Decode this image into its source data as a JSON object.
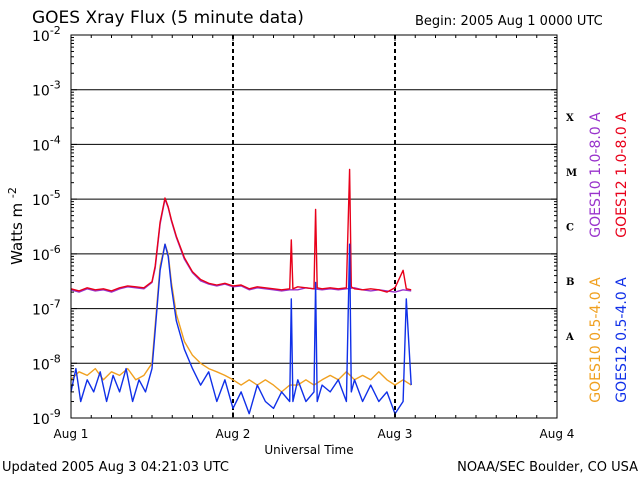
{
  "header": {
    "title": "GOES Xray Flux (5 minute data)",
    "begin": "Begin:  2005 Aug 1 0000 UTC"
  },
  "footer": {
    "updated": "Updated 2005 Aug  3 04:21:03 UTC",
    "credit": "NOAA/SEC Boulder, CO USA"
  },
  "colors": {
    "goes10_long": "#9933cc",
    "goes12_long": "#e8001a",
    "goes10_short": "#f0a020",
    "goes12_short": "#1030e8"
  },
  "chart_data": {
    "type": "line",
    "title": "GOES Xray Flux (5 minute data)",
    "xlabel": "Universal Time",
    "ylabel": "Watts m",
    "ylabel_sup": "-2",
    "x_unit": "days since 2005 Aug 1 0000 UTC",
    "xlim": [
      0,
      3
    ],
    "ylim": [
      1e-09,
      0.01
    ],
    "yscale": "log",
    "grid": true,
    "x_ticks": [
      {
        "x": 0,
        "label": "Aug 1"
      },
      {
        "x": 1,
        "label": "Aug 2"
      },
      {
        "x": 2,
        "label": "Aug 3"
      },
      {
        "x": 3,
        "label": "Aug 4"
      }
    ],
    "y_ticks": [
      {
        "exp": -2,
        "base": "10",
        "sup": "-2"
      },
      {
        "exp": -3,
        "base": "10",
        "sup": "-3"
      },
      {
        "exp": -4,
        "base": "10",
        "sup": "-4"
      },
      {
        "exp": -5,
        "base": "10",
        "sup": "-5"
      },
      {
        "exp": -6,
        "base": "10",
        "sup": "-6"
      },
      {
        "exp": -7,
        "base": "10",
        "sup": "-7"
      },
      {
        "exp": -8,
        "base": "10",
        "sup": "-8"
      },
      {
        "exp": -9,
        "base": "10",
        "sup": "-9"
      }
    ],
    "flare_classes": [
      {
        "label": "X",
        "exp": -3.5
      },
      {
        "label": "M",
        "exp": -4.5
      },
      {
        "label": "C",
        "exp": -5.5
      },
      {
        "label": "B",
        "exp": -6.5
      },
      {
        "label": "A",
        "exp": -7.5
      }
    ],
    "legend_right": [
      {
        "name": "GOES10 1.0-8.0 A",
        "color": "#9933cc",
        "part": "top"
      },
      {
        "name": "GOES12 1.0-8.0 A",
        "color": "#e8001a",
        "part": "top"
      },
      {
        "name": "GOES10 0.5-4.0 A",
        "color": "#f0a020",
        "part": "bottom"
      },
      {
        "name": "GOES12 0.5-4.0 A",
        "color": "#1030e8",
        "part": "bottom"
      }
    ],
    "series": [
      {
        "name": "GOES10 1.0-8.0 A",
        "color": "#9933cc",
        "x": [
          0,
          0.05,
          0.1,
          0.15,
          0.2,
          0.25,
          0.3,
          0.35,
          0.4,
          0.45,
          0.5,
          0.52,
          0.55,
          0.58,
          0.6,
          0.62,
          0.65,
          0.7,
          0.75,
          0.8,
          0.85,
          0.9,
          0.95,
          1.0,
          1.05,
          1.1,
          1.15,
          1.2,
          1.25,
          1.3,
          1.35,
          1.4,
          1.45,
          1.5,
          1.55,
          1.6,
          1.65,
          1.7,
          1.75,
          1.8,
          1.85,
          1.9,
          1.95,
          2.0,
          2.05,
          2.1
        ],
        "y": [
          2.2e-07,
          2e-07,
          2.3e-07,
          2.1e-07,
          2.2e-07,
          2e-07,
          2.3e-07,
          2.5e-07,
          2.4e-07,
          2.3e-07,
          3e-07,
          5.5e-07,
          3.5e-06,
          1e-05,
          7e-06,
          4e-06,
          2e-06,
          8e-07,
          4.5e-07,
          3.2e-07,
          2.8e-07,
          2.6e-07,
          2.8e-07,
          2.5e-07,
          2.6e-07,
          2.2e-07,
          2.4e-07,
          2.3e-07,
          2.2e-07,
          2.1e-07,
          2.2e-07,
          2.2e-07,
          2.4e-07,
          2.3e-07,
          2.2e-07,
          2.3e-07,
          2.2e-07,
          2.3e-07,
          2.4e-07,
          2.2e-07,
          2.1e-07,
          2.2e-07,
          2.1e-07,
          2e-07,
          2.2e-07,
          2.1e-07
        ]
      },
      {
        "name": "GOES12 1.0-8.0 A",
        "color": "#e8001a",
        "x": [
          0,
          0.05,
          0.1,
          0.15,
          0.2,
          0.25,
          0.3,
          0.35,
          0.4,
          0.45,
          0.5,
          0.52,
          0.55,
          0.58,
          0.6,
          0.62,
          0.65,
          0.7,
          0.75,
          0.8,
          0.85,
          0.9,
          0.95,
          1.0,
          1.05,
          1.1,
          1.15,
          1.2,
          1.25,
          1.3,
          1.35,
          1.36,
          1.37,
          1.4,
          1.45,
          1.5,
          1.51,
          1.52,
          1.55,
          1.6,
          1.65,
          1.7,
          1.72,
          1.73,
          1.75,
          1.8,
          1.85,
          1.9,
          1.95,
          2.0,
          2.05,
          2.07,
          2.1
        ],
        "y": [
          2.3e-07,
          2.1e-07,
          2.4e-07,
          2.2e-07,
          2.3e-07,
          2.1e-07,
          2.4e-07,
          2.6e-07,
          2.5e-07,
          2.4e-07,
          3.1e-07,
          6e-07,
          3.8e-06,
          1.05e-05,
          7.2e-06,
          4.2e-06,
          2.1e-06,
          8.5e-07,
          4.7e-07,
          3.4e-07,
          2.9e-07,
          2.7e-07,
          2.9e-07,
          2.6e-07,
          2.7e-07,
          2.3e-07,
          2.5e-07,
          2.4e-07,
          2.3e-07,
          2.2e-07,
          2.3e-07,
          1.8e-06,
          2.3e-07,
          2.5e-07,
          2.4e-07,
          2.3e-07,
          6.5e-06,
          2.4e-07,
          2.3e-07,
          2.4e-07,
          2.3e-07,
          2.4e-07,
          3.5e-05,
          2.5e-07,
          2.3e-07,
          2.2e-07,
          2.3e-07,
          2.2e-07,
          2e-07,
          2.4e-07,
          5e-07,
          2.3e-07,
          2.2e-07
        ]
      },
      {
        "name": "GOES10 0.5-4.0 A",
        "color": "#f0a020",
        "x": [
          0,
          0.05,
          0.1,
          0.15,
          0.2,
          0.25,
          0.3,
          0.35,
          0.4,
          0.45,
          0.5,
          0.52,
          0.55,
          0.58,
          0.6,
          0.62,
          0.65,
          0.7,
          0.75,
          0.8,
          0.85,
          0.9,
          0.95,
          1.0,
          1.05,
          1.1,
          1.15,
          1.2,
          1.25,
          1.3,
          1.35,
          1.4,
          1.45,
          1.5,
          1.55,
          1.6,
          1.65,
          1.7,
          1.75,
          1.8,
          1.85,
          1.9,
          1.95,
          2.0,
          2.05,
          2.1
        ],
        "y": [
          5e-09,
          7e-09,
          6e-09,
          8e-09,
          5e-09,
          7e-09,
          6e-09,
          8e-09,
          5e-09,
          6e-09,
          1e-08,
          5e-08,
          6e-07,
          1.5e-06,
          1e-06,
          3e-07,
          8e-08,
          2.5e-08,
          1.4e-08,
          1e-08,
          8e-09,
          7e-09,
          6e-09,
          5e-09,
          4e-09,
          5e-09,
          4e-09,
          5e-09,
          4e-09,
          3e-09,
          4e-09,
          4e-09,
          5e-09,
          4e-09,
          5e-09,
          6e-09,
          5e-09,
          7e-09,
          5e-09,
          6e-09,
          5e-09,
          7e-09,
          5e-09,
          4e-09,
          5e-09,
          4e-09
        ]
      },
      {
        "name": "GOES12 0.5-4.0 A",
        "color": "#1030e8",
        "x": [
          0,
          0.03,
          0.06,
          0.1,
          0.14,
          0.18,
          0.22,
          0.26,
          0.3,
          0.34,
          0.38,
          0.42,
          0.46,
          0.5,
          0.52,
          0.55,
          0.58,
          0.6,
          0.62,
          0.65,
          0.7,
          0.75,
          0.8,
          0.85,
          0.9,
          0.95,
          1.0,
          1.05,
          1.1,
          1.15,
          1.2,
          1.25,
          1.3,
          1.35,
          1.36,
          1.37,
          1.4,
          1.45,
          1.5,
          1.51,
          1.52,
          1.55,
          1.6,
          1.65,
          1.7,
          1.72,
          1.73,
          1.75,
          1.8,
          1.85,
          1.9,
          1.95,
          2.0,
          2.05,
          2.07,
          2.1
        ],
        "y": [
          3e-09,
          8e-09,
          2e-09,
          5e-09,
          3e-09,
          7e-09,
          2e-09,
          6e-09,
          3e-09,
          8e-09,
          2e-09,
          5e-09,
          3e-09,
          8e-09,
          4e-08,
          5e-07,
          1.5e-06,
          9e-07,
          2.5e-07,
          6e-08,
          1.8e-08,
          8e-09,
          4e-09,
          7e-09,
          2e-09,
          5e-09,
          1.5e-09,
          3e-09,
          1.2e-09,
          4e-09,
          2e-09,
          1.5e-09,
          3e-09,
          2e-09,
          1.5e-07,
          2e-09,
          5e-09,
          2e-09,
          3e-09,
          3e-07,
          2e-09,
          4e-09,
          3e-09,
          5e-09,
          2e-09,
          1.5e-06,
          3e-09,
          5e-09,
          2e-09,
          4e-09,
          2e-09,
          3e-09,
          1.2e-09,
          2e-09,
          1.5e-07,
          4e-09
        ]
      }
    ]
  }
}
